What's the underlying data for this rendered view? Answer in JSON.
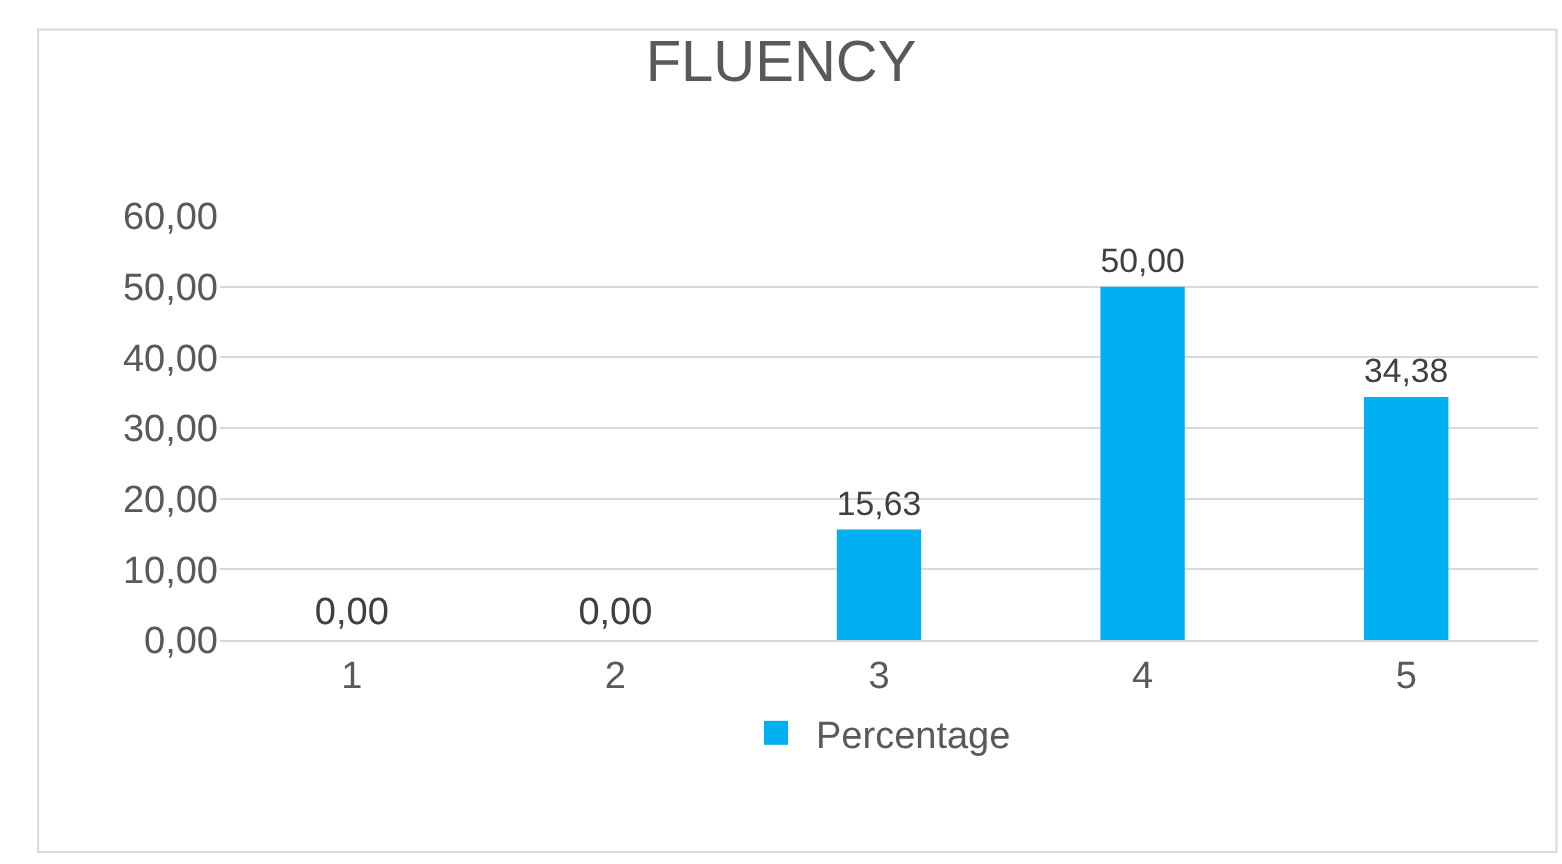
{
  "chart_data": {
    "type": "bar",
    "title": "FLUENCY",
    "categories": [
      "1",
      "2",
      "3",
      "4",
      "5"
    ],
    "series": [
      {
        "name": "Percentage",
        "color": "#00b0f0",
        "values": [
          0,
          0,
          15.63,
          50,
          34.38
        ],
        "value_labels": [
          "0,00",
          "0,00",
          "15,63",
          "50,00",
          "34,38"
        ]
      }
    ],
    "ylim": [
      0,
      60
    ],
    "yticks": [
      {
        "value": 0,
        "label": "0,00"
      },
      {
        "value": 10,
        "label": "10,00"
      },
      {
        "value": 20,
        "label": "20,00"
      },
      {
        "value": 30,
        "label": "30,00"
      },
      {
        "value": 40,
        "label": "40,00"
      },
      {
        "value": 50,
        "label": "50,00"
      },
      {
        "value": 60,
        "label": "60,00"
      }
    ],
    "grid": "y",
    "legend": "bottom"
  }
}
